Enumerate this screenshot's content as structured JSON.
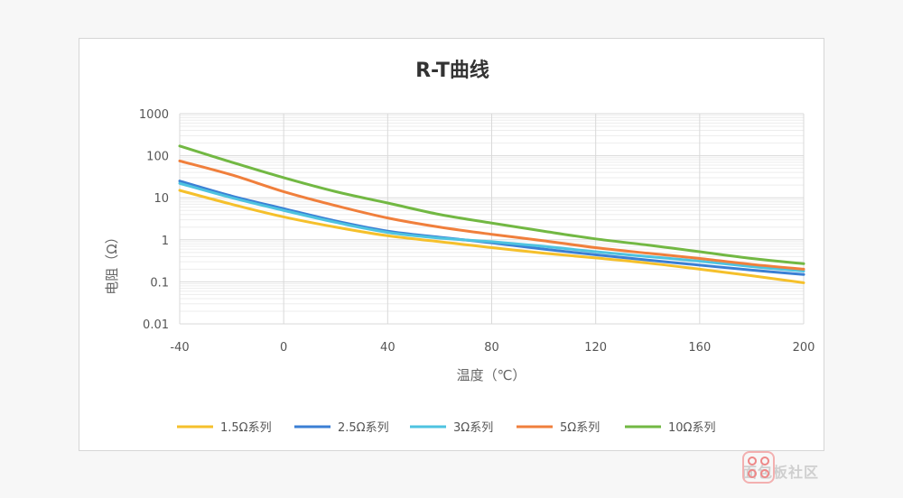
{
  "chart_data": {
    "type": "line",
    "title": "R-T曲线",
    "xlabel": "温度（℃）",
    "ylabel": "电阻（Ω）",
    "x": [
      -40,
      -20,
      0,
      20,
      40,
      60,
      80,
      100,
      120,
      140,
      160,
      180,
      200
    ],
    "xlim": [
      -40,
      200
    ],
    "xticks": [
      -40,
      0,
      40,
      80,
      120,
      160,
      200
    ],
    "ylim": [
      0.01,
      1000
    ],
    "yscale": "log",
    "yticks": [
      {
        "value": 0.01,
        "label": "0.01"
      },
      {
        "value": 0.1,
        "label": "0.1"
      },
      {
        "value": 1,
        "label": "1"
      },
      {
        "value": 10,
        "label": "10"
      },
      {
        "value": 100,
        "label": "100"
      },
      {
        "value": 1000,
        "label": "1000"
      }
    ],
    "grid": true,
    "legend_position": "bottom",
    "series": [
      {
        "name": "1.5Ω系列",
        "color": "#f5c02b",
        "values": [
          15,
          7,
          3.5,
          2.0,
          1.25,
          0.9,
          0.65,
          0.48,
          0.37,
          0.28,
          0.2,
          0.14,
          0.095
        ]
      },
      {
        "name": "2.5Ω系列",
        "color": "#3b7fd4",
        "values": [
          25,
          11,
          5.5,
          2.8,
          1.6,
          1.15,
          0.85,
          0.6,
          0.44,
          0.33,
          0.25,
          0.19,
          0.15
        ]
      },
      {
        "name": "3Ω系列",
        "color": "#4ec3e0",
        "values": [
          22,
          10,
          5.0,
          2.6,
          1.5,
          1.1,
          0.9,
          0.7,
          0.52,
          0.4,
          0.31,
          0.23,
          0.18
        ]
      },
      {
        "name": "5Ω系列",
        "color": "#f07f3c",
        "values": [
          75,
          35,
          14,
          6.5,
          3.3,
          2.0,
          1.35,
          0.95,
          0.65,
          0.48,
          0.36,
          0.26,
          0.2
        ]
      },
      {
        "name": "10Ω系列",
        "color": "#72b843",
        "values": [
          170,
          70,
          30,
          14,
          7.5,
          4.0,
          2.5,
          1.6,
          1.05,
          0.75,
          0.52,
          0.36,
          0.27
        ]
      }
    ]
  },
  "watermark": {
    "text": "面包板社区"
  }
}
